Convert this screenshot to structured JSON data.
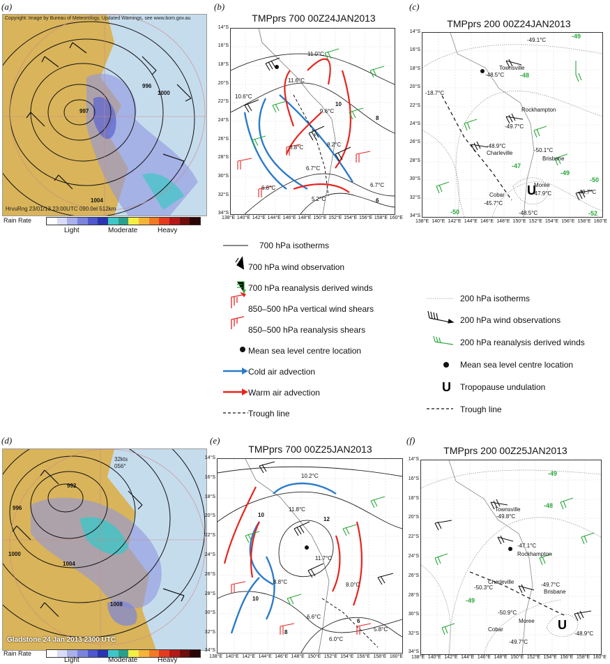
{
  "panels": {
    "a": {
      "label": "(a)",
      "copyright": "Copyright: Image by Bureau of Meteorology, Updated Warnings, see www.bom.gov.au",
      "stamp": "HrvuRng 23/01/13 23:00UTC 090.0el 512km",
      "rain_rate_label": "Rain Rate",
      "rain_levels": [
        "Light",
        "Moderate",
        "Heavy"
      ],
      "isobars": [
        "996",
        "1000",
        "997",
        "1004"
      ]
    },
    "b": {
      "label": "(b)",
      "title": "TMPprs 700 00Z24JAN2013",
      "temps": [
        "11.0°C",
        "11.6°C",
        "10.6°C",
        "9.6°C",
        "8.8°C",
        "8.2°C",
        "6.7°C",
        "6.8°C",
        "5.2°C",
        "6.7°C"
      ],
      "isotherm_labels": [
        "10",
        "8",
        "6"
      ]
    },
    "c": {
      "label": "(c)",
      "title": "TMPprs 200 00Z24JAN2013",
      "places": [
        "Townsville",
        "Rockhampton",
        "Charleville",
        "Brisbane",
        "Moree",
        "Cobar"
      ],
      "temps": [
        "-49.1°C",
        "-48.5°C",
        "-18.7°C",
        "-49.7°C",
        "-48.9°C",
        "-50.1°C",
        "-47.9°C",
        "-45.7°C",
        "-48.5°C",
        "-49.7°C"
      ],
      "isotherm_labels": [
        "-49",
        "-48",
        "-47",
        "-49",
        "-50",
        "-50",
        "-52"
      ]
    },
    "d": {
      "label": "(d)",
      "stamp": "Gladstone 24 Jan 2013 2300 UTC",
      "speed": "32kts",
      "direction": "056°",
      "rain_rate_label": "Rain Rate",
      "rain_levels": [
        "Light",
        "Moderate",
        "Heavy"
      ],
      "isobars": [
        "992",
        "996",
        "1000",
        "1004",
        "1008"
      ]
    },
    "e": {
      "label": "(e)",
      "title": "TMPprs 700 00Z25JAN2013",
      "temps": [
        "10.2°C",
        "11.8°C",
        "11.7°C",
        "8.8°C",
        "8.0°C",
        "6.6°C",
        "6.0°C",
        "5.8°C"
      ],
      "isotherm_labels": [
        "10",
        "12",
        "10",
        "8",
        "6"
      ]
    },
    "f": {
      "label": "(f)",
      "title": "TMPprs 200 00Z25JAN2013",
      "places": [
        "Townsville",
        "Rockhampton",
        "Charleville",
        "Brisbane",
        "Moree",
        "Cobar"
      ],
      "temps": [
        "-49.8°C",
        "-47.1°C",
        "-50.3°C",
        "-49.7°C",
        "-50.9°C",
        "-49.7°C",
        "-48.9°C"
      ],
      "isotherm_labels": [
        "-49",
        "-48",
        "-49"
      ]
    }
  },
  "axes": {
    "lat_ticks": [
      "14°S",
      "16°S",
      "18°S",
      "20°S",
      "22°S",
      "24°S",
      "26°S",
      "28°S",
      "30°S",
      "32°S",
      "34°S"
    ],
    "lon_ticks": [
      "138°E",
      "140°E",
      "142°E",
      "144°E",
      "146°E",
      "148°E",
      "150°E",
      "152°E",
      "154°E",
      "156°E",
      "158°E",
      "160°E"
    ]
  },
  "legend_700": [
    "700 hPa isotherms",
    "700 hPa wind observation",
    "700 hPa reanalysis derived winds",
    "850–500 hPa vertical wind shears",
    "850–500 hPa reanalysis shears",
    "Mean sea level centre location",
    "Cold air advection",
    "Warm air advection",
    "Trough line"
  ],
  "legend_200": [
    "200 hPa isotherms",
    "200 hPa wind observations",
    "200 hPa reanalysis derived winds",
    "Mean sea level centre location",
    "Tropopause undulation",
    "Trough line"
  ],
  "colors": {
    "cold": "#2b7bc8",
    "warm": "#e8231e",
    "reanalysis": "#2aa63b",
    "radar_land": "#d9b45a",
    "radar_sea": "#c5dced"
  }
}
